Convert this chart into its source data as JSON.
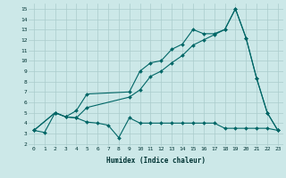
{
  "title": "",
  "xlabel": "Humidex (Indice chaleur)",
  "bg_color": "#cce8e8",
  "grid_color": "#aacccc",
  "line_color": "#006666",
  "xlim": [
    -0.5,
    23.5
  ],
  "ylim": [
    1.8,
    15.5
  ],
  "xticks": [
    0,
    1,
    2,
    3,
    4,
    5,
    6,
    7,
    8,
    9,
    10,
    11,
    12,
    13,
    14,
    15,
    16,
    17,
    18,
    19,
    20,
    21,
    22,
    23
  ],
  "yticks": [
    2,
    3,
    4,
    5,
    6,
    7,
    8,
    9,
    10,
    11,
    12,
    13,
    14,
    15
  ],
  "line1_x": [
    0,
    1,
    2,
    3,
    4,
    5,
    6,
    7,
    8,
    9,
    10,
    11,
    12,
    13,
    14,
    15,
    16,
    17,
    18,
    19,
    20,
    21,
    22,
    23
  ],
  "line1_y": [
    3.3,
    3.1,
    5.0,
    4.6,
    4.5,
    4.1,
    4.0,
    3.8,
    2.6,
    4.5,
    4.0,
    4.0,
    4.0,
    4.0,
    4.0,
    4.0,
    4.0,
    4.0,
    3.5,
    3.5,
    3.5,
    3.5,
    3.5,
    3.3
  ],
  "line2_x": [
    0,
    2,
    3,
    4,
    5,
    9,
    10,
    11,
    12,
    13,
    14,
    15,
    16,
    17,
    18,
    19,
    20,
    21,
    22,
    23
  ],
  "line2_y": [
    3.3,
    5.0,
    4.6,
    5.2,
    6.8,
    7.0,
    9.0,
    9.8,
    10.0,
    11.1,
    11.6,
    13.0,
    12.6,
    12.6,
    13.0,
    15.0,
    12.2,
    8.3,
    5.0,
    3.3
  ],
  "line3_x": [
    0,
    2,
    3,
    4,
    5,
    9,
    10,
    11,
    12,
    13,
    14,
    15,
    16,
    17,
    18,
    19,
    20,
    21,
    22,
    23
  ],
  "line3_y": [
    3.3,
    5.0,
    4.6,
    4.5,
    5.5,
    6.5,
    7.2,
    8.5,
    9.0,
    9.8,
    10.5,
    11.5,
    12.0,
    12.5,
    13.0,
    15.0,
    12.2,
    8.3,
    5.0,
    3.3
  ]
}
